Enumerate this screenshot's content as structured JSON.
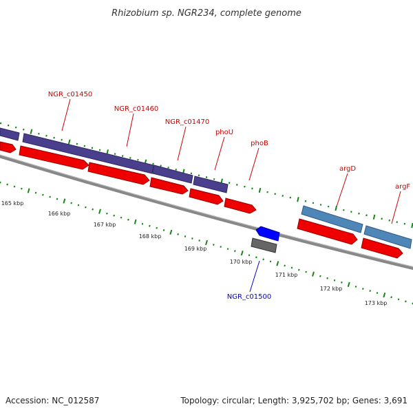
{
  "title": "Rhizobium sp. NGR234, complete genome",
  "footer": {
    "accession": "Accession: NC_012587",
    "summary": "Topology: circular; Length: 3,925,702 bp; Genes: 3,691"
  },
  "colors": {
    "backbone": "#777777",
    "cds": "#ee0000",
    "gene_plus": "#4a3f8c",
    "gene_plus_alt": "#4f86b8",
    "gene_minus": "#0000ff",
    "gene_minus_grey": "#666666",
    "label_plus": "#cc0000",
    "label_minus": "#0000cc",
    "tick": "#118811"
  },
  "scale_labels": [
    "165 kbp",
    "166 kbp",
    "167 kbp",
    "168 kbp",
    "169 kbp",
    "170 kbp",
    "171 kbp",
    "172 kbp",
    "173 kbp"
  ],
  "genes_plus": [
    {
      "name": "NGR_c01450"
    },
    {
      "name": "NGR_c01460"
    },
    {
      "name": "NGR_c01470"
    },
    {
      "name": "phoU"
    },
    {
      "name": "phoB"
    },
    {
      "name": "argD"
    },
    {
      "name": "argF"
    }
  ],
  "genes_minus": [
    {
      "name": "NGR_c01500"
    }
  ]
}
